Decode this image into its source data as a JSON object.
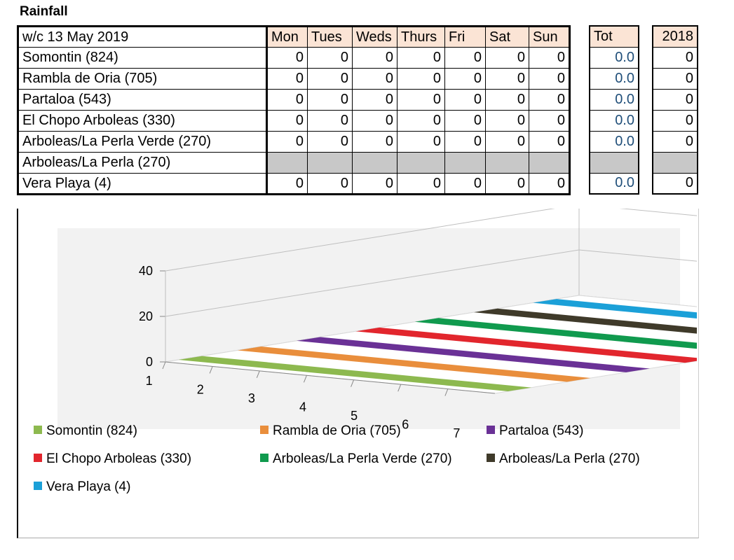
{
  "title": "Rainfall",
  "table": {
    "week_label": "w/c 13 May 2019",
    "day_headers": [
      "Mon",
      "Tues",
      "Weds",
      "Thurs",
      "Fri",
      "Sat",
      "Sun"
    ],
    "tot_header": "Tot",
    "prev_year_header": "2018",
    "rows": [
      {
        "name": "Somontin (824)",
        "days": [
          "0",
          "0",
          "0",
          "0",
          "0",
          "0",
          "0"
        ],
        "tot": "0.0",
        "prev": "0"
      },
      {
        "name": "Rambla de Oria (705)",
        "days": [
          "0",
          "0",
          "0",
          "0",
          "0",
          "0",
          "0"
        ],
        "tot": "0.0",
        "prev": "0"
      },
      {
        "name": "Partaloa (543)",
        "days": [
          "0",
          "0",
          "0",
          "0",
          "0",
          "0",
          "0"
        ],
        "tot": "0.0",
        "prev": "0"
      },
      {
        "name": "El Chopo Arboleas (330)",
        "days": [
          "0",
          "0",
          "0",
          "0",
          "0",
          "0",
          "0"
        ],
        "tot": "0.0",
        "prev": "0"
      },
      {
        "name": "Arboleas/La Perla Verde (270)",
        "days": [
          "0",
          "0",
          "0",
          "0",
          "0",
          "0",
          "0"
        ],
        "tot": "0.0",
        "prev": "0"
      },
      {
        "name": "Arboleas/La Perla (270)",
        "days": [
          "",
          "",
          "",
          "",
          "",
          "",
          ""
        ],
        "tot": "",
        "prev": "",
        "greyed": true
      },
      {
        "name": "Vera Playa (4)",
        "days": [
          "0",
          "0",
          "0",
          "0",
          "0",
          "0",
          "0"
        ],
        "tot": "0.0",
        "prev": "0"
      }
    ]
  },
  "chart_data": {
    "type": "bar",
    "subtype": "3d-series",
    "categories": [
      "1",
      "2",
      "3",
      "4",
      "5",
      "6",
      "7"
    ],
    "ylim": [
      0,
      40
    ],
    "yticks": [
      "0",
      "20",
      "40"
    ],
    "grid": true,
    "legend_position": "bottom",
    "series": [
      {
        "name": "Somontin (824)",
        "color": "#8db94f",
        "values": [
          0,
          0,
          0,
          0,
          0,
          0,
          0
        ]
      },
      {
        "name": "Rambla de Oria (705)",
        "color": "#e98e3c",
        "values": [
          0,
          0,
          0,
          0,
          0,
          0,
          0
        ]
      },
      {
        "name": "Partaloa (543)",
        "color": "#6a3196",
        "values": [
          0,
          0,
          0,
          0,
          0,
          0,
          0
        ]
      },
      {
        "name": "El Chopo Arboleas (330)",
        "color": "#e2262d",
        "values": [
          0,
          0,
          0,
          0,
          0,
          0,
          0
        ]
      },
      {
        "name": "Arboleas/La Perla Verde (270)",
        "color": "#109a4e",
        "values": [
          0,
          0,
          0,
          0,
          0,
          0,
          0
        ]
      },
      {
        "name": "Arboleas/La Perla (270)",
        "color": "#3f3a2a",
        "values": [
          0,
          0,
          0,
          0,
          0,
          0,
          0
        ]
      },
      {
        "name": "Vera Playa (4)",
        "color": "#1ba0d8",
        "values": [
          0,
          0,
          0,
          0,
          0,
          0,
          0
        ]
      }
    ]
  }
}
